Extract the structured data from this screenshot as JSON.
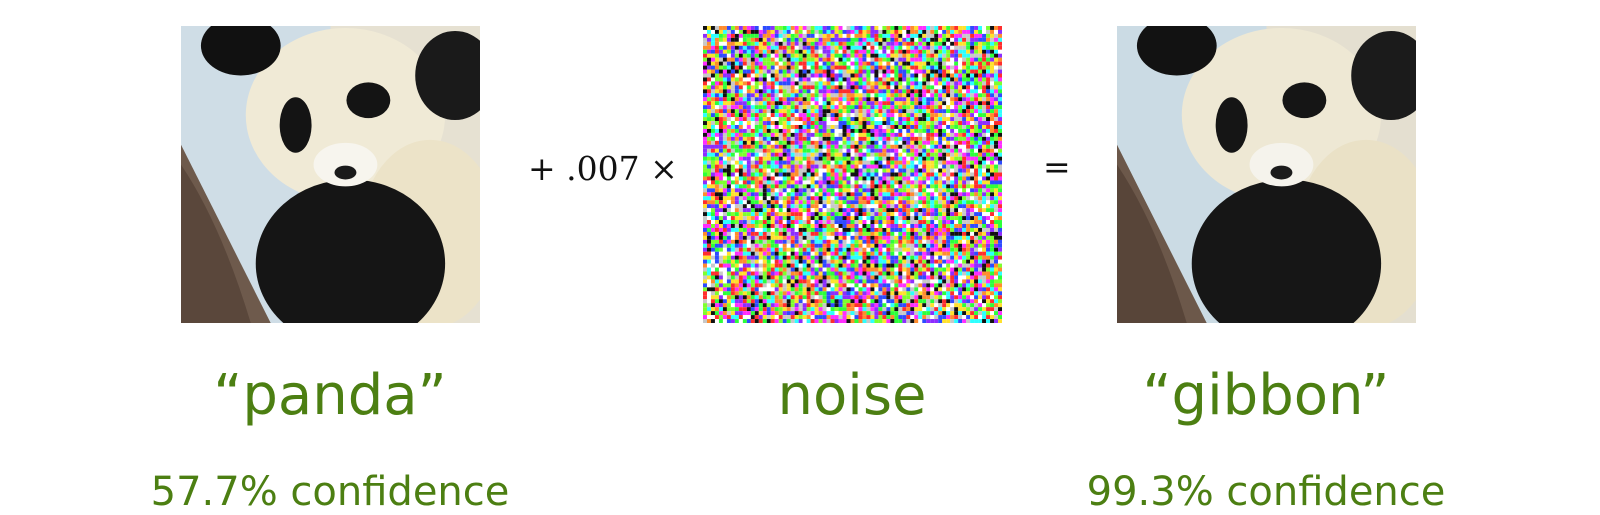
{
  "operators": {
    "plus_times": "+ .007 ×",
    "equals": "="
  },
  "labels": {
    "panda": "“panda”",
    "noise": "noise",
    "gibbon": "“gibbon”"
  },
  "confidence": {
    "panda": "57.7% confidence",
    "gibbon": "99.3% confidence"
  },
  "colors": {
    "label_green": "#4c7f12",
    "operator_text": "#111111"
  },
  "images": {
    "panda": "panda-photo",
    "noise": "noise-pattern",
    "gibbon": "panda-photo-perturbed"
  }
}
